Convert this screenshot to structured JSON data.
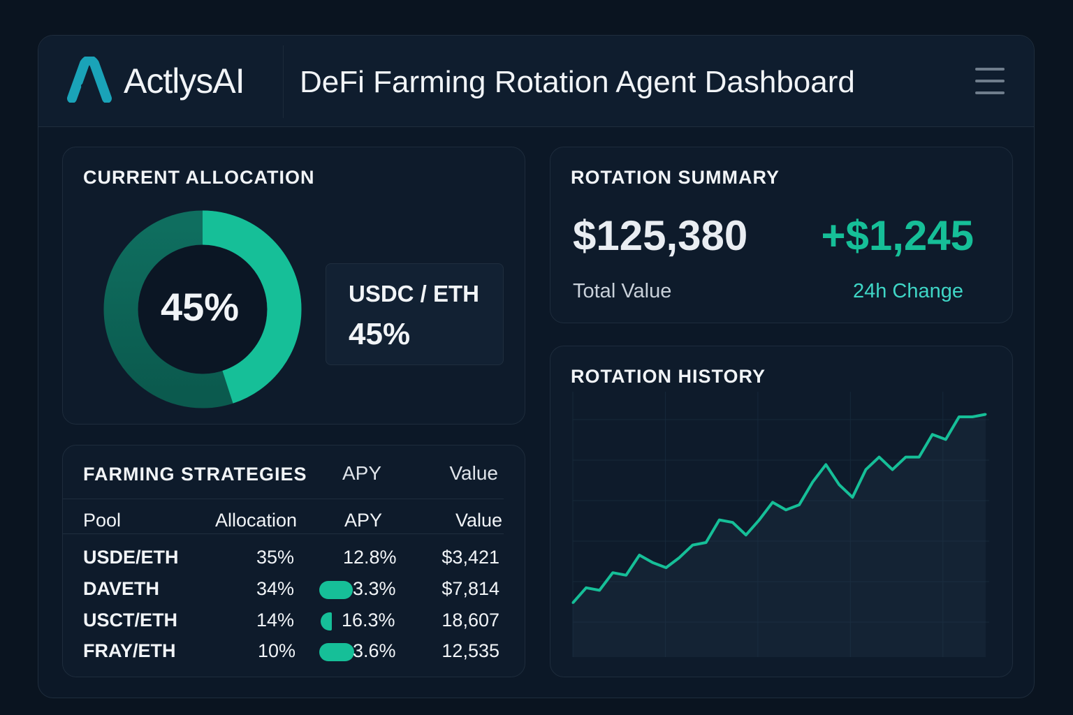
{
  "header": {
    "brand": "ActlysAI",
    "title": "DeFi Farming Rotation Agent Dashboard",
    "logo_icon": "actlys-logo",
    "menu_icon": "hamburger-icon"
  },
  "colors": {
    "accent": "#16bf98",
    "logo": "#1aa3b8",
    "background": "#0a1420"
  },
  "allocation": {
    "title": "CURRENT ALLOCATION",
    "percent_label": "45%",
    "percent": 45,
    "pair": "USDC / ETH",
    "pair_percent": "45%"
  },
  "summary": {
    "title": "ROTATION SUMMARY",
    "total_value": "$125,380",
    "total_label": "Total Value",
    "change": "+$1,245",
    "change_label": "24h Change"
  },
  "strategies": {
    "title": "FARMING STRATEGIES",
    "title_apy": "APY",
    "title_value": "Value",
    "columns": [
      "Pool",
      "Allocation",
      "APY",
      "Value"
    ],
    "rows": [
      {
        "pool": "USDE/ETH",
        "allocation": "35%",
        "apy": "12.8%",
        "value": "$3,421"
      },
      {
        "pool": "DAVETH",
        "allocation": "34%",
        "apy": "3.3%",
        "value": "$7,814"
      },
      {
        "pool": "USCT/ETH",
        "allocation": "14%",
        "apy": "16.3%",
        "value": "18,607"
      },
      {
        "pool": "FRAY/ETH",
        "allocation": "10%",
        "apy": "3.6%",
        "value": "12,535"
      }
    ]
  },
  "history": {
    "title": "ROTATION HISTORY"
  },
  "chart_data": {
    "type": "line",
    "title": "ROTATION HISTORY",
    "grid": true,
    "xlabel": "",
    "ylabel": "",
    "ylim": [
      0,
      100
    ],
    "values": [
      16,
      22,
      21,
      28,
      27,
      35,
      32,
      30,
      34,
      39,
      40,
      49,
      48,
      43,
      49,
      56,
      53,
      55,
      64,
      71,
      63,
      58,
      69,
      74,
      69,
      74,
      74,
      83,
      81,
      90,
      90,
      91
    ]
  }
}
